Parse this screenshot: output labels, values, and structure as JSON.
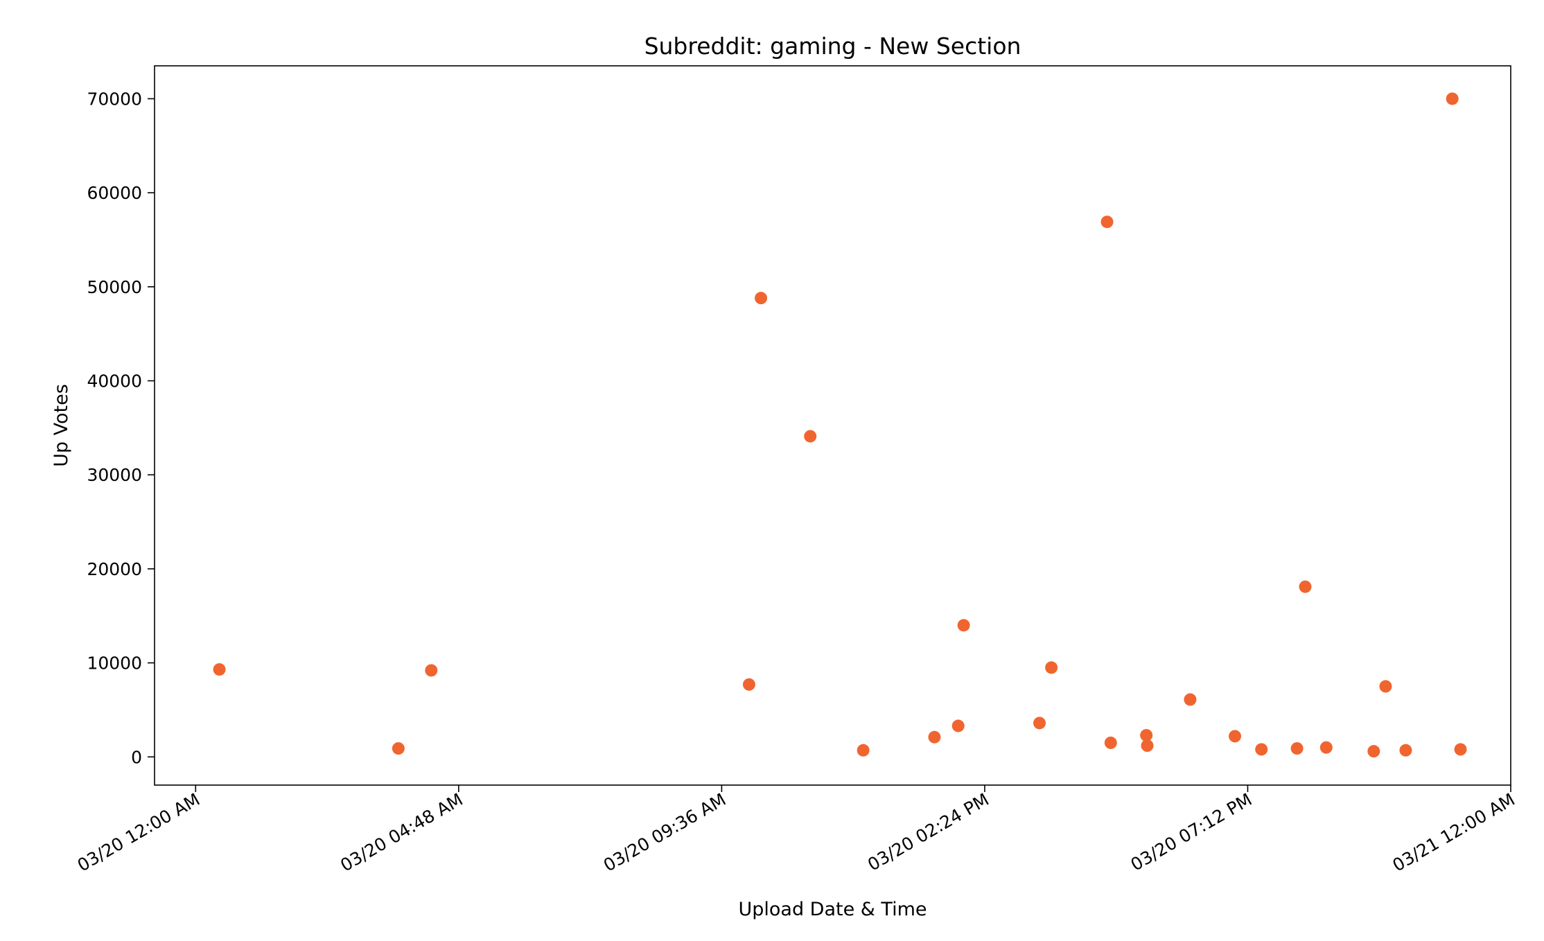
{
  "chart_data": {
    "type": "scatter",
    "title": "Subreddit: gaming - New Section",
    "xlabel": "Upload Date & Time",
    "ylabel": "Up Votes",
    "marker_color": "#f0652f",
    "x_unit": "datetime",
    "xlim": [
      "2020-03-19T23:15:00",
      "2020-03-21T00:00:00"
    ],
    "ylim": [
      -3000,
      73500
    ],
    "x_ticks": [
      {
        "value": "2020-03-20T00:00:00",
        "label": "03/20 12:00 AM"
      },
      {
        "value": "2020-03-20T04:48:00",
        "label": "03/20 04:48 AM"
      },
      {
        "value": "2020-03-20T09:36:00",
        "label": "03/20 09:36 AM"
      },
      {
        "value": "2020-03-20T14:24:00",
        "label": "03/20 02:24 PM"
      },
      {
        "value": "2020-03-20T19:12:00",
        "label": "03/20 07:12 PM"
      },
      {
        "value": "2020-03-21T00:00:00",
        "label": "03/21 12:00 AM"
      }
    ],
    "y_ticks": [
      {
        "value": 0,
        "label": "0"
      },
      {
        "value": 10000,
        "label": "10000"
      },
      {
        "value": 20000,
        "label": "20000"
      },
      {
        "value": 30000,
        "label": "30000"
      },
      {
        "value": 40000,
        "label": "40000"
      },
      {
        "value": 50000,
        "label": "50000"
      },
      {
        "value": 60000,
        "label": "60000"
      },
      {
        "value": 70000,
        "label": "70000"
      }
    ],
    "points": [
      {
        "x": "2020-03-20T00:26:00",
        "y": 9300
      },
      {
        "x": "2020-03-20T03:42:00",
        "y": 900
      },
      {
        "x": "2020-03-20T04:18:00",
        "y": 9200
      },
      {
        "x": "2020-03-20T10:06:00",
        "y": 7700
      },
      {
        "x": "2020-03-20T10:19:00",
        "y": 48800
      },
      {
        "x": "2020-03-20T11:13:00",
        "y": 34100
      },
      {
        "x": "2020-03-20T12:11:00",
        "y": 700
      },
      {
        "x": "2020-03-20T13:29:00",
        "y": 2100
      },
      {
        "x": "2020-03-20T13:55:00",
        "y": 3300
      },
      {
        "x": "2020-03-20T14:01:00",
        "y": 14000
      },
      {
        "x": "2020-03-20T15:24:00",
        "y": 3600
      },
      {
        "x": "2020-03-20T15:37:00",
        "y": 9500
      },
      {
        "x": "2020-03-20T16:38:00",
        "y": 56900
      },
      {
        "x": "2020-03-20T16:42:00",
        "y": 1500
      },
      {
        "x": "2020-03-20T17:21:00",
        "y": 2300
      },
      {
        "x": "2020-03-20T17:22:00",
        "y": 1200
      },
      {
        "x": "2020-03-20T18:09:00",
        "y": 6100
      },
      {
        "x": "2020-03-20T18:58:00",
        "y": 2200
      },
      {
        "x": "2020-03-20T19:27:00",
        "y": 800
      },
      {
        "x": "2020-03-20T20:06:00",
        "y": 900
      },
      {
        "x": "2020-03-20T20:15:00",
        "y": 18100
      },
      {
        "x": "2020-03-20T20:38:00",
        "y": 1000
      },
      {
        "x": "2020-03-20T21:30:00",
        "y": 600
      },
      {
        "x": "2020-03-20T21:43:00",
        "y": 7500
      },
      {
        "x": "2020-03-20T22:05:00",
        "y": 700
      },
      {
        "x": "2020-03-20T22:56:00",
        "y": 70000
      },
      {
        "x": "2020-03-20T23:05:00",
        "y": 800
      }
    ]
  }
}
